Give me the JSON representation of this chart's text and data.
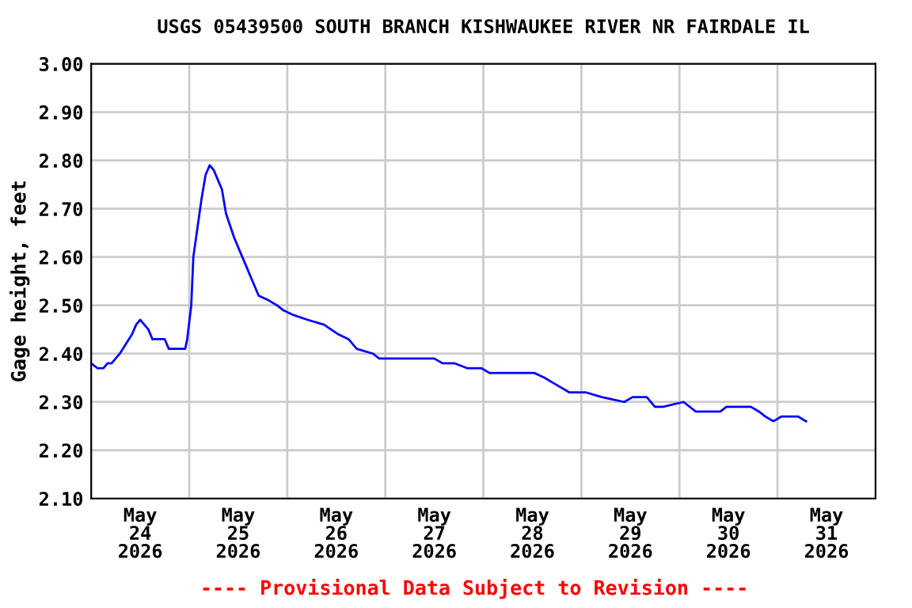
{
  "chart_data": {
    "type": "line",
    "title": "USGS 05439500 SOUTH BRANCH KISHWAUKEE RIVER NR FAIRDALE IL",
    "ylabel": "Gage height, feet",
    "annotations": [
      "---- Provisional Data Subject to Revision ----"
    ],
    "x": [
      "2026-05-24T00:00",
      "2026-05-24T01:30",
      "2026-05-24T03:00",
      "2026-05-24T04:00",
      "2026-05-24T05:00",
      "2026-05-24T07:00",
      "2026-05-24T08:30",
      "2026-05-24T10:00",
      "2026-05-24T11:00",
      "2026-05-24T12:00",
      "2026-05-24T13:00",
      "2026-05-24T14:00",
      "2026-05-24T15:00",
      "2026-05-24T18:00",
      "2026-05-24T19:00",
      "2026-05-24T23:00",
      "2026-05-24T23:30",
      "2026-05-25T00:30",
      "2026-05-25T01:00",
      "2026-05-25T02:00",
      "2026-05-25T03:00",
      "2026-05-25T04:00",
      "2026-05-25T05:00",
      "2026-05-25T06:00",
      "2026-05-25T08:00",
      "2026-05-25T09:00",
      "2026-05-25T11:00",
      "2026-05-25T12:30",
      "2026-05-25T14:00",
      "2026-05-25T15:30",
      "2026-05-25T17:00",
      "2026-05-25T19:30",
      "2026-05-25T21:30",
      "2026-05-25T23:00",
      "2026-05-26T01:30",
      "2026-05-26T05:00",
      "2026-05-26T09:00",
      "2026-05-26T12:30",
      "2026-05-26T15:00",
      "2026-05-26T17:00",
      "2026-05-26T21:00",
      "2026-05-26T22:30",
      "2026-05-27T12:00",
      "2026-05-27T14:00",
      "2026-05-27T17:00",
      "2026-05-27T20:00",
      "2026-05-27T23:30",
      "2026-05-28T01:30",
      "2026-05-28T12:30",
      "2026-05-28T15:00",
      "2026-05-28T17:00",
      "2026-05-28T21:00",
      "2026-05-29T01:00",
      "2026-05-29T05:00",
      "2026-05-29T10:30",
      "2026-05-29T12:30",
      "2026-05-29T16:00",
      "2026-05-29T18:00",
      "2026-05-29T20:00",
      "2026-05-30T01:00",
      "2026-05-30T04:00",
      "2026-05-30T10:00",
      "2026-05-30T11:30",
      "2026-05-30T17:30",
      "2026-05-30T19:30",
      "2026-05-30T21:00",
      "2026-05-30T23:00",
      "2026-05-31T01:00",
      "2026-05-31T05:00",
      "2026-05-31T07:00"
    ],
    "series": [
      {
        "color": "#0000ff",
        "values": [
          2.38,
          2.37,
          2.37,
          2.38,
          2.38,
          2.4,
          2.42,
          2.44,
          2.46,
          2.47,
          2.46,
          2.45,
          2.43,
          2.43,
          2.41,
          2.41,
          2.43,
          2.5,
          2.6,
          2.66,
          2.72,
          2.77,
          2.79,
          2.78,
          2.74,
          2.69,
          2.64,
          2.61,
          2.58,
          2.55,
          2.52,
          2.51,
          2.5,
          2.49,
          2.48,
          2.47,
          2.46,
          2.44,
          2.43,
          2.41,
          2.4,
          2.39,
          2.39,
          2.38,
          2.38,
          2.37,
          2.37,
          2.36,
          2.36,
          2.35,
          2.34,
          2.32,
          2.32,
          2.31,
          2.3,
          2.31,
          2.31,
          2.29,
          2.29,
          2.3,
          2.28,
          2.28,
          2.29,
          2.29,
          2.28,
          2.27,
          2.26,
          2.27,
          2.27,
          2.26
        ]
      }
    ],
    "xlim": [
      "2026-05-24T00:00",
      "2026-06-01T00:00"
    ],
    "xticks": [
      {
        "value": "2026-05-24T12:00",
        "label": "May\n24\n2026"
      },
      {
        "value": "2026-05-25T00:00",
        "label": null
      },
      {
        "value": "2026-05-25T12:00",
        "label": "May\n25\n2026"
      },
      {
        "value": "2026-05-26T00:00",
        "label": null
      },
      {
        "value": "2026-05-26T12:00",
        "label": "May\n26\n2026"
      },
      {
        "value": "2026-05-27T00:00",
        "label": null
      },
      {
        "value": "2026-05-27T12:00",
        "label": "May\n27\n2026"
      },
      {
        "value": "2026-05-28T00:00",
        "label": null
      },
      {
        "value": "2026-05-28T12:00",
        "label": "May\n28\n2026"
      },
      {
        "value": "2026-05-29T00:00",
        "label": null
      },
      {
        "value": "2026-05-29T12:00",
        "label": "May\n29\n2026"
      },
      {
        "value": "2026-05-30T00:00",
        "label": null
      },
      {
        "value": "2026-05-30T12:00",
        "label": "May\n30\n2026"
      },
      {
        "value": "2026-05-31T00:00",
        "label": null
      },
      {
        "value": "2026-05-31T12:00",
        "label": "May\n31\n2026"
      }
    ],
    "ylim": [
      2.1,
      3.0
    ],
    "yticks": [
      {
        "value": 2.1,
        "label": "2.10"
      },
      {
        "value": 2.2,
        "label": "2.20"
      },
      {
        "value": 2.3,
        "label": "2.30"
      },
      {
        "value": 2.4,
        "label": "2.40"
      },
      {
        "value": 2.5,
        "label": "2.50"
      },
      {
        "value": 2.6,
        "label": "2.60"
      },
      {
        "value": 2.7,
        "label": "2.70"
      },
      {
        "value": 2.8,
        "label": "2.80"
      },
      {
        "value": 2.9,
        "label": "2.90"
      },
      {
        "value": 3.0,
        "label": "3.00"
      }
    ],
    "grid": true,
    "marker": "none",
    "line_style": "solid"
  }
}
